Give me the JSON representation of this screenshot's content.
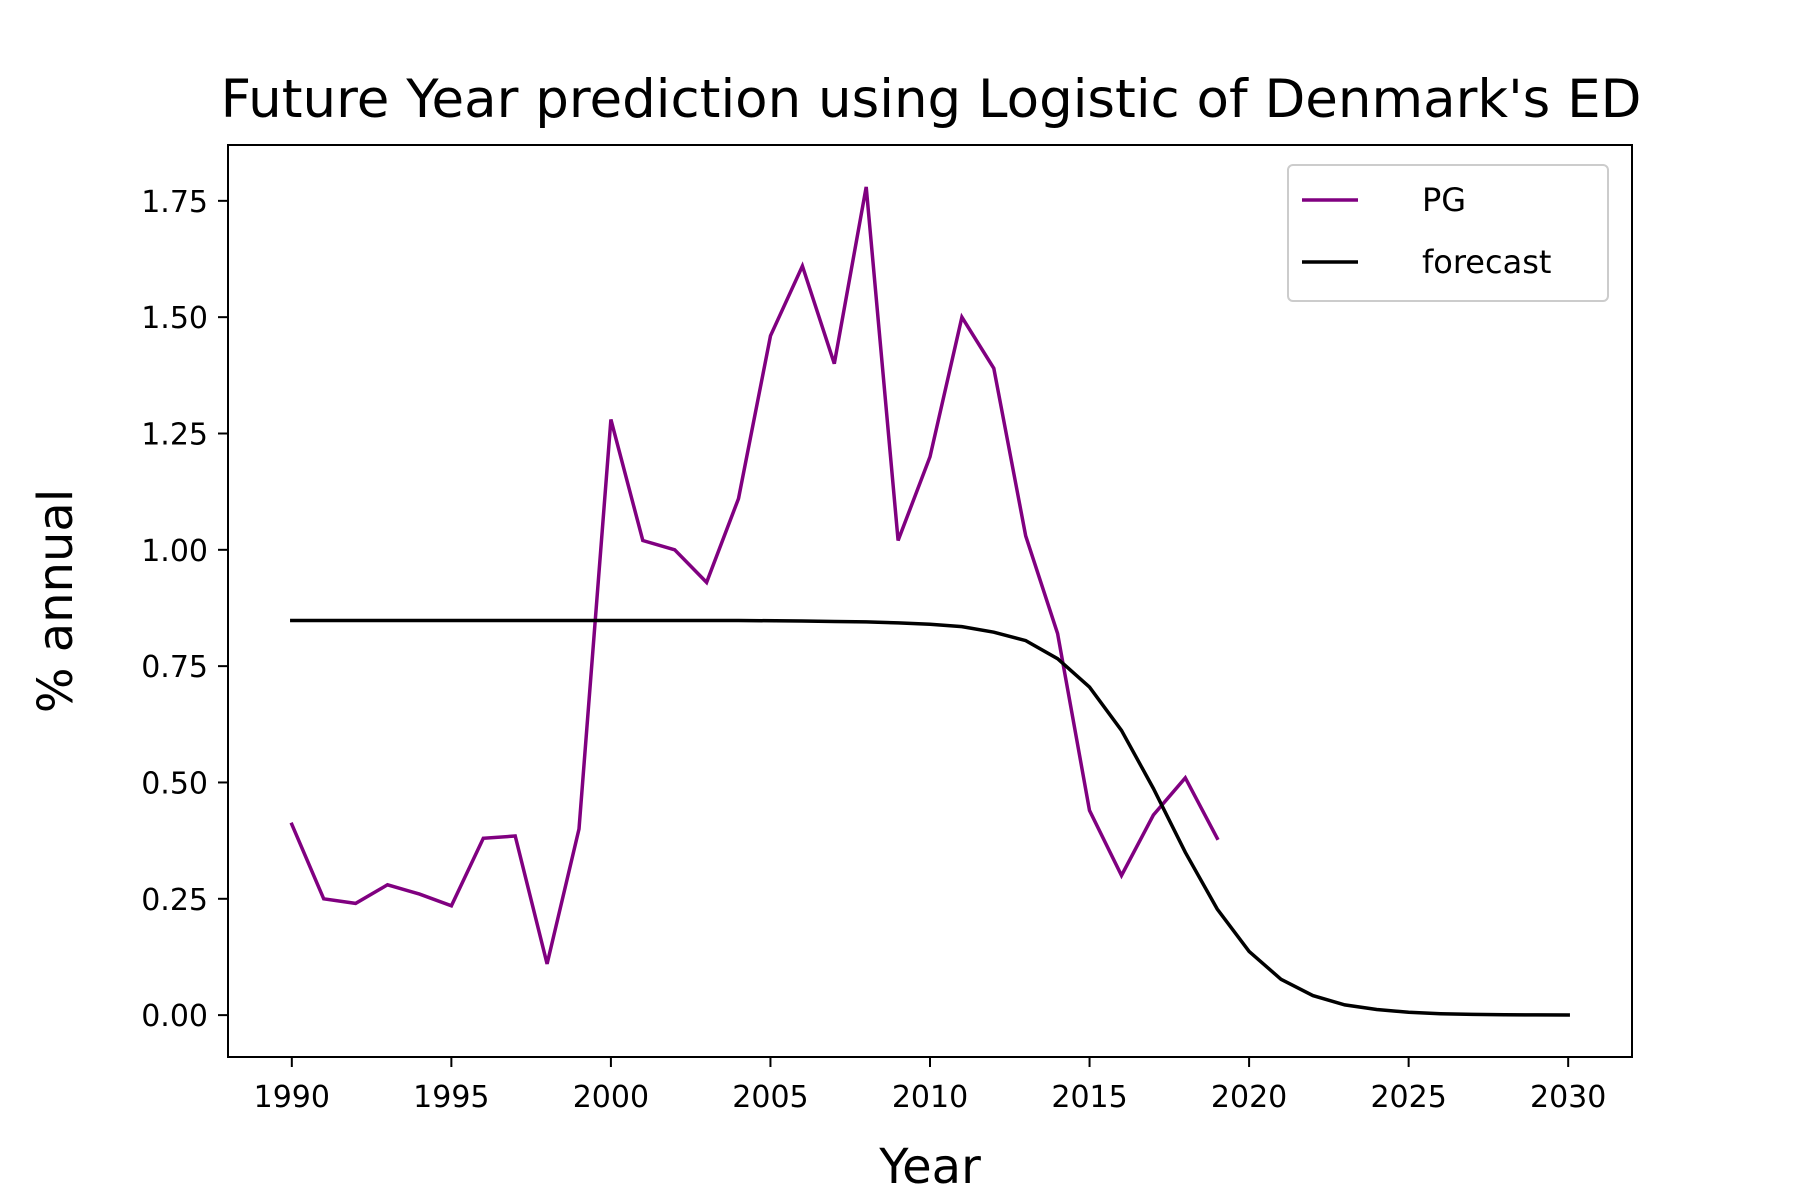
{
  "chart_data": {
    "type": "line",
    "title": "Future Year prediction using Logistic of Denmark's ED",
    "xlabel": "Year",
    "ylabel": "% annual",
    "xlim": [
      1988,
      2032
    ],
    "ylim": [
      -0.09,
      1.87
    ],
    "xticks": [
      1990,
      1995,
      2000,
      2005,
      2010,
      2015,
      2020,
      2025,
      2030
    ],
    "yticks": [
      0.0,
      0.25,
      0.5,
      0.75,
      1.0,
      1.25,
      1.5,
      1.75
    ],
    "ytick_labels": [
      "0.00",
      "0.25",
      "0.50",
      "0.75",
      "1.00",
      "1.25",
      "1.50",
      "1.75"
    ],
    "grid": false,
    "legend_position": "top-right",
    "series": [
      {
        "name": "PG",
        "color": "#800080",
        "x": [
          1990,
          1991,
          1992,
          1993,
          1994,
          1995,
          1996,
          1997,
          1998,
          1999,
          2000,
          2001,
          2002,
          2003,
          2004,
          2005,
          2006,
          2007,
          2008,
          2009,
          2010,
          2011,
          2012,
          2013,
          2014,
          2015,
          2016,
          2017,
          2018,
          2019
        ],
        "y": [
          0.41,
          0.25,
          0.24,
          0.28,
          0.26,
          0.235,
          0.38,
          0.385,
          0.11,
          0.4,
          1.28,
          1.02,
          1.0,
          0.93,
          1.11,
          1.46,
          1.61,
          1.4,
          1.78,
          1.02,
          1.2,
          1.5,
          1.39,
          1.03,
          0.82,
          0.44,
          0.3,
          0.43,
          0.51,
          0.38
        ]
      },
      {
        "name": "forecast",
        "color": "#000000",
        "x": [
          1990,
          1992,
          1994,
          1996,
          1998,
          2000,
          2002,
          2004,
          2006,
          2007,
          2008,
          2009,
          2010,
          2011,
          2012,
          2013,
          2014,
          2015,
          2016,
          2017,
          2018,
          2019,
          2020,
          2021,
          2022,
          2023,
          2024,
          2025,
          2026,
          2027,
          2028,
          2029,
          2030
        ],
        "y": [
          0.848,
          0.848,
          0.848,
          0.848,
          0.848,
          0.848,
          0.848,
          0.848,
          0.847,
          0.846,
          0.845,
          0.843,
          0.84,
          0.835,
          0.823,
          0.805,
          0.766,
          0.705,
          0.612,
          0.487,
          0.35,
          0.228,
          0.137,
          0.077,
          0.042,
          0.022,
          0.012,
          0.006,
          0.003,
          0.0016,
          0.0008,
          0.0004,
          0.0002
        ]
      }
    ]
  }
}
